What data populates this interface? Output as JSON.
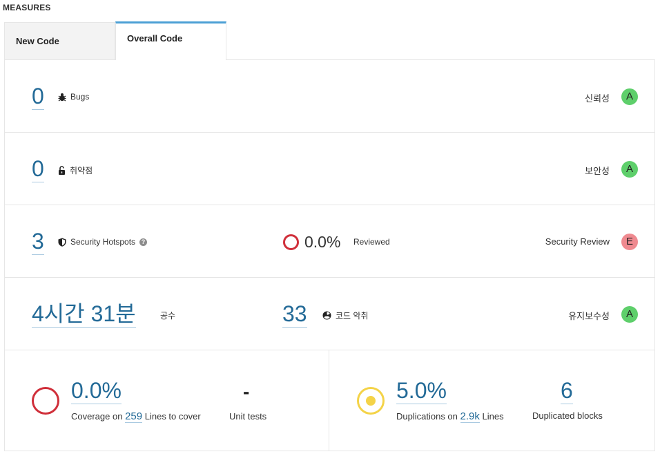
{
  "section_title": "MEASURES",
  "tabs": [
    {
      "label": "New Code",
      "active": false
    },
    {
      "label": "Overall Code",
      "active": true
    }
  ],
  "reliability": {
    "value": "0",
    "label": "Bugs",
    "rating_label": "신뢰성",
    "rating": "A",
    "rating_color": "#5ecf6b"
  },
  "security": {
    "value": "0",
    "label": "취약점",
    "rating_label": "보안성",
    "rating": "A",
    "rating_color": "#5ecf6b"
  },
  "hotspots": {
    "value": "3",
    "label": "Security Hotspots",
    "reviewed_percent": "0.0%",
    "reviewed_label": "Reviewed",
    "rating_label": "Security Review",
    "rating": "E",
    "rating_color": "#ef8a90"
  },
  "maintainability": {
    "effort": "4시간 31분",
    "effort_label": "공수",
    "smells": "33",
    "smells_label": "코드 악취",
    "rating_label": "유지보수성",
    "rating": "A",
    "rating_color": "#5ecf6b"
  },
  "coverage": {
    "percent": "0.0%",
    "prefix": "Coverage on",
    "lines": "259",
    "suffix": "Lines to cover",
    "unit_tests": "-",
    "unit_tests_label": "Unit tests"
  },
  "duplications": {
    "percent": "5.0%",
    "prefix": "Duplications on",
    "lines": "2.9k",
    "suffix": "Lines",
    "blocks": "6",
    "blocks_label": "Duplicated blocks"
  },
  "colors": {
    "link": "#236a97",
    "tab_accent": "#4b9fd5",
    "coverage_ring": "#d02f3a",
    "duplication_ring": "#f4d348"
  },
  "icons": [
    "bug-icon",
    "lock-open-icon",
    "shield-icon",
    "help-icon",
    "code-smell-icon"
  ]
}
